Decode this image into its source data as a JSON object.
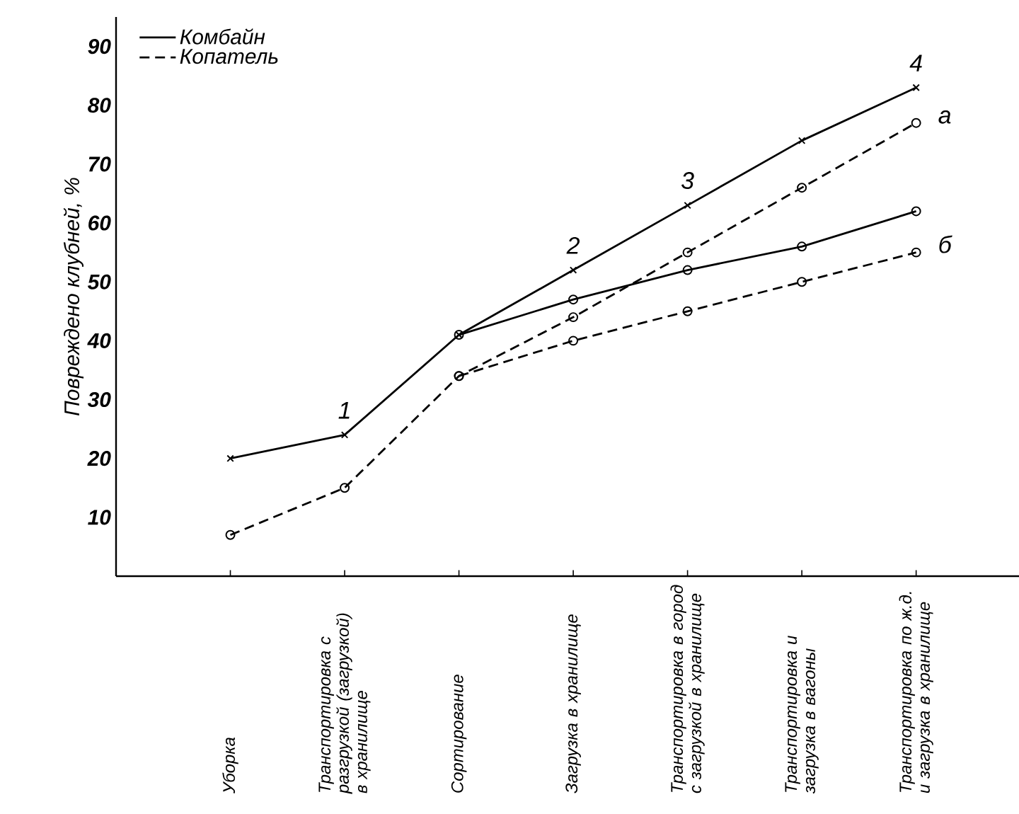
{
  "chart_data": {
    "type": "line",
    "ylabel": "Повреждено клубней, %",
    "categories": [
      "Уборка",
      "Транспортировка с разгрузкой (загрузкой) в хранилище",
      "Сортирование",
      "Загрузка в хранилище",
      "Транспортировка в город с загрузкой в хранилище",
      "Транспортировка и загрузка в вагоны",
      "Транспортировка по ж.д. и загрузка в хранилище"
    ],
    "series": [
      {
        "name": "Комбайн",
        "color": "#000000",
        "line_style": "solid",
        "marker": "cross",
        "values": [
          20,
          24,
          41,
          52,
          63,
          74,
          83
        ]
      },
      {
        "name": "Копатель",
        "color": "#000000",
        "line_style": "dashed",
        "marker": "circle",
        "values": [
          7,
          15,
          34,
          44,
          55,
          66,
          77
        ]
      },
      {
        "color": "#000000",
        "line_style": "solid",
        "marker": "circle",
        "values": [
          null,
          null,
          41,
          47,
          52,
          56,
          62
        ]
      },
      {
        "color": "#000000",
        "line_style": "dashed",
        "marker": "circle",
        "values": [
          null,
          null,
          34,
          40,
          45,
          50,
          55
        ]
      }
    ],
    "ylim": [
      0,
      95
    ],
    "yticks": [
      10,
      20,
      30,
      40,
      50,
      60,
      70,
      80,
      90
    ],
    "legend": "top left",
    "grid": false,
    "annotations": [
      {
        "text": "1",
        "x": "Транспортировка с разгрузкой (загрузкой) в хранилище",
        "y": 24
      },
      {
        "text": "2",
        "x": "Загрузка в хранилище",
        "y": 52
      },
      {
        "text": "3",
        "x": "Транспортировка в город с загрузкой в хранилище",
        "y": 63
      },
      {
        "text": "4",
        "x": "Транспортировка по ж.д. и загрузка в хранилище",
        "y": 83
      },
      {
        "text": "а",
        "x": "Транспортировка по ж.д. и загрузка в хранилище",
        "y": 77
      },
      {
        "text": "б",
        "x": "Транспортировка по ж.д. и загрузка в хранилище",
        "y": 55
      }
    ]
  }
}
